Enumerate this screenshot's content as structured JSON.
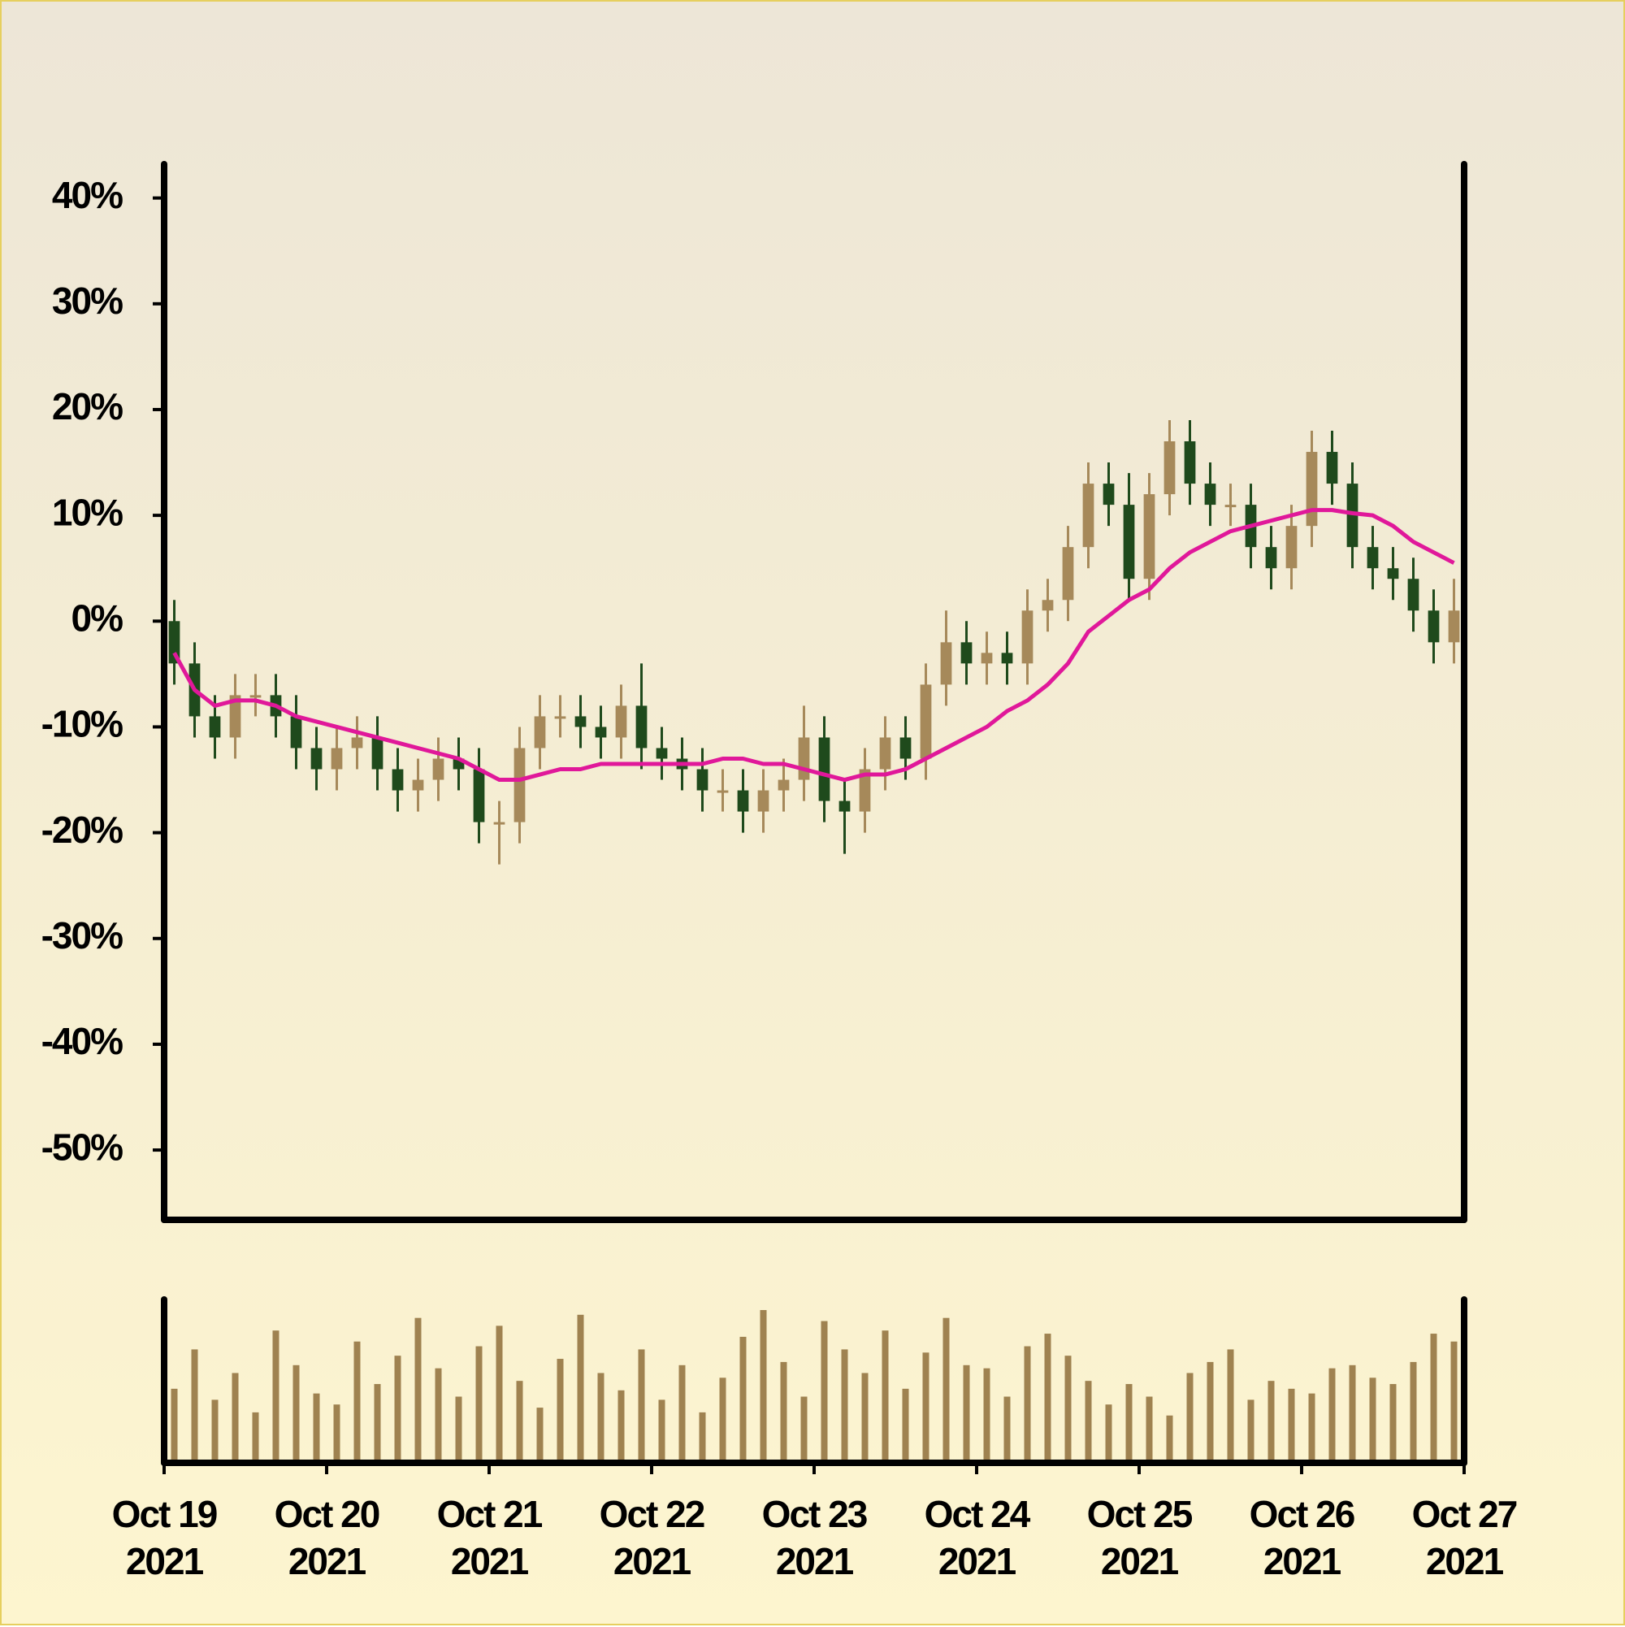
{
  "chart_data": {
    "type": "candlestick",
    "x": [
      0.0625,
      0.1875,
      0.3125,
      0.4375,
      0.5625,
      0.6875,
      0.8125,
      0.9375,
      1.0625,
      1.1875,
      1.3125,
      1.4375,
      1.5625,
      1.6875,
      1.8125,
      1.9375,
      2.0625,
      2.1875,
      2.3125,
      2.4375,
      2.5625,
      2.6875,
      2.8125,
      2.9375,
      3.0625,
      3.1875,
      3.3125,
      3.4375,
      3.5625,
      3.6875,
      3.8125,
      3.9375,
      4.0625,
      4.1875,
      4.3125,
      4.4375,
      4.5625,
      4.6875,
      4.8125,
      4.9375,
      5.0625,
      5.1875,
      5.3125,
      5.4375,
      5.5625,
      5.6875,
      5.8125,
      5.9375,
      6.0625,
      6.1875,
      6.3125,
      6.4375,
      6.5625,
      6.6875,
      6.8125,
      6.9375,
      7.0625,
      7.1875,
      7.3125,
      7.4375,
      7.5625,
      7.6875,
      7.8125,
      7.9375
    ],
    "open": [
      0,
      -4,
      -9,
      -11,
      -7,
      -7,
      -9,
      -12,
      -14,
      -12,
      -11,
      -14,
      -16,
      -15,
      -13,
      -14,
      -19,
      -19,
      -12,
      -9,
      -9,
      -10,
      -11,
      -8,
      -12,
      -13,
      -14,
      -16,
      -16,
      -18,
      -16,
      -15,
      -11,
      -17,
      -18,
      -14,
      -11,
      -13,
      -6,
      -2,
      -4,
      -3,
      -4,
      1,
      2,
      7,
      13,
      11,
      4,
      12,
      17,
      13,
      11,
      11,
      7,
      5,
      9,
      16,
      13,
      7,
      5,
      4,
      1,
      -2
    ],
    "high": [
      2,
      -2,
      -7,
      -5,
      -5,
      -5,
      -7,
      -10,
      -10,
      -9,
      -9,
      -12,
      -13,
      -11,
      -11,
      -12,
      -17,
      -10,
      -7,
      -7,
      -7,
      -8,
      -6,
      -4,
      -10,
      -11,
      -12,
      -14,
      -14,
      -14,
      -13,
      -8,
      -9,
      -15,
      -12,
      -9,
      -9,
      -4,
      1,
      0,
      -1,
      -1,
      3,
      4,
      9,
      15,
      15,
      14,
      14,
      19,
      19,
      15,
      13,
      13,
      9,
      11,
      18,
      18,
      15,
      9,
      7,
      6,
      3,
      4
    ],
    "low": [
      -6,
      -11,
      -13,
      -13,
      -9,
      -11,
      -14,
      -16,
      -16,
      -14,
      -16,
      -18,
      -18,
      -17,
      -16,
      -21,
      -23,
      -21,
      -14,
      -11,
      -12,
      -13,
      -13,
      -14,
      -15,
      -16,
      -18,
      -18,
      -20,
      -20,
      -18,
      -17,
      -19,
      -22,
      -20,
      -16,
      -15,
      -15,
      -8,
      -6,
      -6,
      -6,
      -6,
      -1,
      0,
      5,
      9,
      2,
      2,
      10,
      11,
      9,
      9,
      5,
      3,
      3,
      7,
      11,
      5,
      3,
      2,
      -1,
      -4,
      -4
    ],
    "close": [
      -4,
      -9,
      -11,
      -7,
      -7,
      -9,
      -12,
      -14,
      -12,
      -11,
      -14,
      -16,
      -15,
      -13,
      -14,
      -19,
      -19,
      -12,
      -9,
      -9,
      -10,
      -11,
      -8,
      -12,
      -13,
      -14,
      -16,
      -16,
      -18,
      -16,
      -15,
      -11,
      -17,
      -18,
      -14,
      -11,
      -13,
      -6,
      -2,
      -4,
      -3,
      -4,
      1,
      2,
      7,
      13,
      11,
      4,
      12,
      17,
      13,
      11,
      11,
      7,
      5,
      9,
      16,
      13,
      7,
      5,
      4,
      1,
      -2,
      1
    ],
    "volume": [
      45,
      70,
      38,
      55,
      30,
      82,
      60,
      42,
      35,
      75,
      48,
      66,
      90,
      58,
      40,
      72,
      85,
      50,
      33,
      64,
      92,
      55,
      44,
      70,
      38,
      60,
      30,
      52,
      78,
      95,
      62,
      40,
      88,
      70,
      55,
      82,
      45,
      68,
      90,
      60,
      58,
      40,
      72,
      80,
      66,
      50,
      35,
      48,
      40,
      28,
      55,
      62,
      70,
      38,
      50,
      45,
      42,
      58,
      60,
      52,
      48,
      62,
      80,
      75
    ],
    "up_color": "#a6895a",
    "down_color": "#1f4a1c",
    "volume_color": "#9f8250",
    "moving_average": {
      "color": "#e0189a",
      "values": [
        -3,
        -6.5,
        -8,
        -7.5,
        -7.5,
        -8,
        -9,
        -9.5,
        -10,
        -10.5,
        -11,
        -11.5,
        -12,
        -12.5,
        -13,
        -14,
        -15,
        -15,
        -14.5,
        -14,
        -14,
        -13.5,
        -13.5,
        -13.5,
        -13.5,
        -13.5,
        -13.5,
        -13,
        -13,
        -13.5,
        -13.5,
        -14,
        -14.5,
        -15,
        -14.5,
        -14.5,
        -14,
        -13,
        -12,
        -11,
        -10,
        -8.5,
        -7.5,
        -6,
        -4,
        -1,
        0.5,
        2,
        3,
        5,
        6.5,
        7.5,
        8.5,
        9,
        9.5,
        10,
        10.5,
        10.5,
        10.2,
        10,
        9,
        7.5,
        6.5,
        5.5
      ]
    },
    "xlim": [
      0,
      8
    ],
    "xticks": [
      {
        "value": 0,
        "label": "Oct 19\n2021"
      },
      {
        "value": 1,
        "label": "Oct 20\n2021"
      },
      {
        "value": 2,
        "label": "Oct 21\n2021"
      },
      {
        "value": 3,
        "label": "Oct 22\n2021"
      },
      {
        "value": 4,
        "label": "Oct 23\n2021"
      },
      {
        "value": 5,
        "label": "Oct 24\n2021"
      },
      {
        "value": 6,
        "label": "Oct 25\n2021"
      },
      {
        "value": 7,
        "label": "Oct 26\n2021"
      },
      {
        "value": 8,
        "label": "Oct 27\n2021"
      }
    ],
    "ylim": [
      -56.6,
      43.2
    ],
    "yticks": [
      {
        "value": 40,
        "label": "40%"
      },
      {
        "value": 30,
        "label": "30%"
      },
      {
        "value": 20,
        "label": "20%"
      },
      {
        "value": 10,
        "label": "10%"
      },
      {
        "value": 0,
        "label": "0%"
      },
      {
        "value": -10,
        "label": "-10%"
      },
      {
        "value": -20,
        "label": "-20%"
      },
      {
        "value": -30,
        "label": "-30%"
      },
      {
        "value": -40,
        "label": "-40%"
      },
      {
        "value": -50,
        "label": "-50%"
      }
    ]
  }
}
